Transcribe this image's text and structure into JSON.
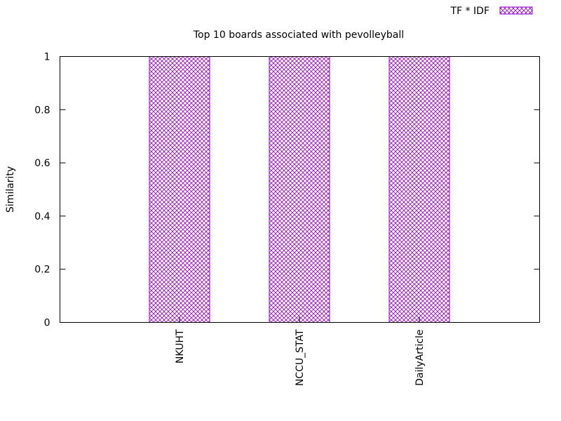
{
  "chart_data": {
    "type": "bar",
    "title": "Top 10 boards associated with pevolleyball",
    "xlabel": "",
    "ylabel": "Similarity",
    "categories": [
      "NKUHT",
      "NCCU_STAT",
      "DailyArticle"
    ],
    "series": [
      {
        "name": "TF * IDF",
        "values": [
          1,
          1,
          1
        ]
      }
    ],
    "ylim": [
      0,
      1
    ],
    "yticks": [
      "0",
      "0.2",
      "0.4",
      "0.6",
      "0.8",
      "1"
    ],
    "legend_position": "top-right",
    "grid": false,
    "bar_color": "#9400d3",
    "bar_fill": "crosshatch"
  }
}
